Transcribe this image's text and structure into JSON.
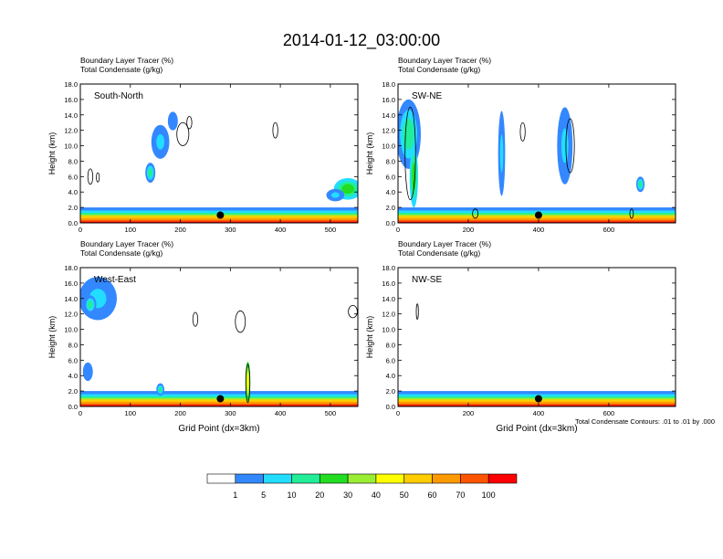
{
  "title": "2014-01-12_03:00:00",
  "footer_note": "Total Condensate Contours: .01 to .01 by .000",
  "colorbar": {
    "colors": [
      "#ffffff",
      "#3388ff",
      "#22ddff",
      "#22ee99",
      "#22dd22",
      "#99ee33",
      "#ffff00",
      "#ffcc00",
      "#ff9900",
      "#ff5500",
      "#ff0000"
    ],
    "labels": [
      "1",
      "5",
      "10",
      "20",
      "30",
      "40",
      "50",
      "60",
      "70",
      "100"
    ]
  },
  "chart_data": [
    {
      "type": "heatmap",
      "panel": "South-North",
      "label1": "Boundary Layer Tracer   (%)",
      "label2": "Total Condensate   (g/kg)",
      "ylabel": "Height (km)",
      "xlabel": "",
      "ylim": [
        0,
        18
      ],
      "yticks": [
        "0.0",
        "2.0",
        "4.0",
        "6.0",
        "8.0",
        "10.0",
        "12.0",
        "14.0",
        "16.0",
        "18.0"
      ],
      "xlim": [
        0,
        555
      ],
      "xticks": [
        0,
        100,
        200,
        300,
        400,
        500
      ],
      "dot": {
        "x": 280,
        "y": 1.0
      },
      "blobs": [
        {
          "x": 140,
          "y": 6.5,
          "rx": 10,
          "ry": 1.3,
          "level": 3
        },
        {
          "x": 160,
          "y": 10.5,
          "rx": 18,
          "ry": 2.2,
          "level": 2
        },
        {
          "x": 185,
          "y": 13.2,
          "rx": 10,
          "ry": 1.2,
          "level": 1
        },
        {
          "x": 535,
          "y": 4.4,
          "rx": 28,
          "ry": 1.4,
          "level": 4
        },
        {
          "x": 510,
          "y": 3.6,
          "rx": 18,
          "ry": 0.8,
          "level": 2
        }
      ],
      "contours": [
        {
          "x": 20,
          "y": 6.0,
          "rx": 5,
          "ry": 1.0
        },
        {
          "x": 35,
          "y": 5.9,
          "rx": 3,
          "ry": 0.6
        },
        {
          "x": 205,
          "y": 11.5,
          "rx": 12,
          "ry": 1.5
        },
        {
          "x": 218,
          "y": 13.0,
          "rx": 5,
          "ry": 0.8
        },
        {
          "x": 390,
          "y": 12.0,
          "rx": 5,
          "ry": 1.0
        }
      ]
    },
    {
      "type": "heatmap",
      "panel": "SW-NE",
      "label1": "Boundary Layer Tracer   (%)",
      "label2": "Total Condensate   (g/kg)",
      "ylabel": "Height (km)",
      "xlabel": "",
      "ylim": [
        0,
        18
      ],
      "yticks": [
        "0.0",
        "2.0",
        "4.0",
        "6.0",
        "8.0",
        "10.0",
        "12.0",
        "14.0",
        "16.0",
        "18.0"
      ],
      "xlim": [
        0,
        790
      ],
      "xticks": [
        0,
        200,
        400,
        600
      ],
      "dot": {
        "x": 400,
        "y": 1.0
      },
      "blobs": [
        {
          "x": 30,
          "y": 11.5,
          "rx": 35,
          "ry": 4.5,
          "level": 3
        },
        {
          "x": 45,
          "y": 6.0,
          "rx": 12,
          "ry": 4.0,
          "level": 4
        },
        {
          "x": 295,
          "y": 9.0,
          "rx": 10,
          "ry": 5.5,
          "level": 2
        },
        {
          "x": 475,
          "y": 10.0,
          "rx": 22,
          "ry": 5.0,
          "level": 2
        },
        {
          "x": 690,
          "y": 5.0,
          "rx": 12,
          "ry": 1.0,
          "level": 3
        }
      ],
      "contours": [
        {
          "x": 35,
          "y": 9.0,
          "rx": 15,
          "ry": 6.0
        },
        {
          "x": 355,
          "y": 11.8,
          "rx": 7,
          "ry": 1.2
        },
        {
          "x": 490,
          "y": 10.0,
          "rx": 12,
          "ry": 3.5
        },
        {
          "x": 220,
          "y": 1.2,
          "rx": 8,
          "ry": 0.6
        },
        {
          "x": 665,
          "y": 1.2,
          "rx": 5,
          "ry": 0.6
        }
      ]
    },
    {
      "type": "heatmap",
      "panel": "West-East",
      "label1": "Boundary Layer Tracer   (%)",
      "label2": "Total Condensate   (g/kg)",
      "ylabel": "Height (km)",
      "xlabel": "Grid Point (dx=3km)",
      "ylim": [
        0,
        18
      ],
      "yticks": [
        "0.0",
        "2.0",
        "4.0",
        "6.0",
        "8.0",
        "10.0",
        "12.0",
        "14.0",
        "16.0",
        "18.0"
      ],
      "xlim": [
        0,
        555
      ],
      "xticks": [
        0,
        100,
        200,
        300,
        400,
        500
      ],
      "dot": {
        "x": 280,
        "y": 1.0
      },
      "blobs": [
        {
          "x": 35,
          "y": 14.0,
          "rx": 38,
          "ry": 2.8,
          "level": 2
        },
        {
          "x": 20,
          "y": 13.2,
          "rx": 12,
          "ry": 1.2,
          "level": 3
        },
        {
          "x": 15,
          "y": 4.5,
          "rx": 10,
          "ry": 1.2,
          "level": 1
        },
        {
          "x": 335,
          "y": 3.2,
          "rx": 5,
          "ry": 2.6,
          "level": 6
        },
        {
          "x": 160,
          "y": 2.2,
          "rx": 8,
          "ry": 0.8,
          "level": 3
        }
      ],
      "contours": [
        {
          "x": 230,
          "y": 11.3,
          "rx": 5,
          "ry": 0.9
        },
        {
          "x": 320,
          "y": 11.0,
          "rx": 10,
          "ry": 1.4
        },
        {
          "x": 545,
          "y": 12.3,
          "rx": 9,
          "ry": 0.8
        },
        {
          "x": 335,
          "y": 3.0,
          "rx": 4,
          "ry": 2.5
        }
      ]
    },
    {
      "type": "heatmap",
      "panel": "NW-SE",
      "label1": "Boundary Layer Tracer   (%)",
      "label2": "Total Condensate   (g/kg)",
      "ylabel": "Height (km)",
      "xlabel": "Grid Point (dx=3km)",
      "ylim": [
        0,
        18
      ],
      "yticks": [
        "0.0",
        "2.0",
        "4.0",
        "6.0",
        "8.0",
        "10.0",
        "12.0",
        "14.0",
        "16.0",
        "18.0"
      ],
      "xlim": [
        0,
        790
      ],
      "xticks": [
        0,
        200,
        400,
        600
      ],
      "dot": {
        "x": 400,
        "y": 1.0
      },
      "blobs": [],
      "contours": [
        {
          "x": 55,
          "y": 12.3,
          "rx": 3,
          "ry": 1.0
        }
      ]
    }
  ]
}
